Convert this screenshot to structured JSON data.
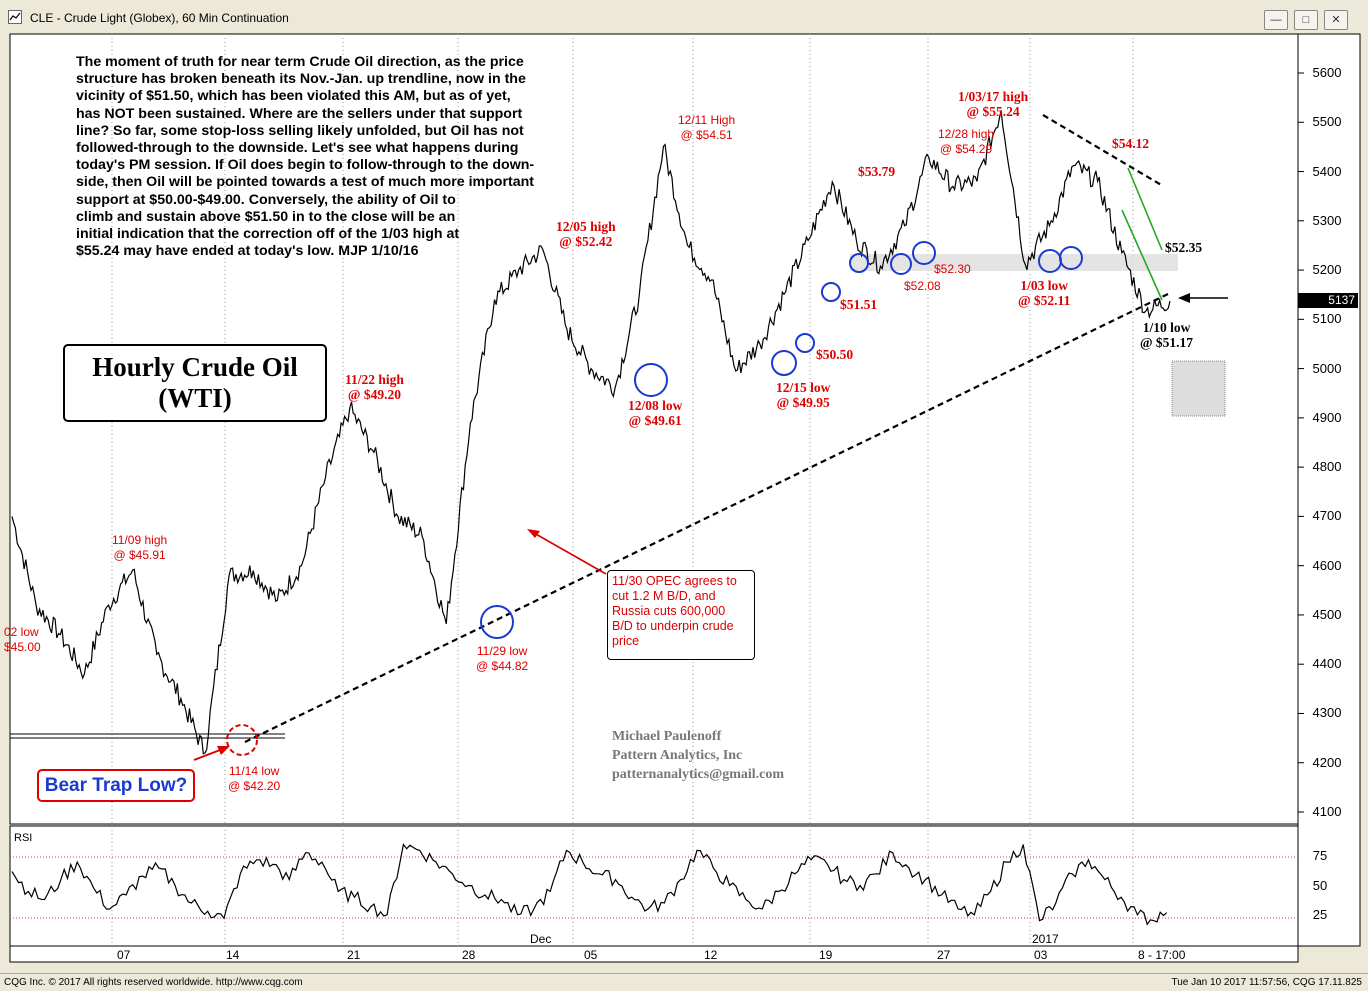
{
  "window": {
    "title": "CLE - Crude Light (Globex), 60 Min Continuation",
    "buttons": [
      "minimize",
      "maximize",
      "close"
    ]
  },
  "footer": {
    "left": "CQG Inc. © 2017 All rights reserved worldwide. http://www.cqg.com",
    "right": "Tue Jan 10 2017 11:57:56, CQG 17.11.825"
  },
  "commentary": "The moment of truth for near term Crude Oil direction, as the price\nstructure has broken beneath its Nov.-Jan. up trendline, now in the\nvicinity of $51.50, which has been violated this AM, but as of yet,\nhas NOT been sustained. Where are the sellers under that support\nline? So far, some stop-loss selling likely unfolded, but Oil has not\nfollowed-through to the downside. Let's see what happens during\ntoday's PM session. If Oil does begin to follow-through to the down-\nside, then Oil will be pointed towards a test of much more important\nsupport at $50.00-$49.00. Conversely, the ability of Oil to\nclimb and sustain above $51.50 in to the close will be an\ninitial indication that the correction off of the 1/03 high at\n$55.24 may have ended at today's low. MJP 1/10/16",
  "box_title": "Hourly Crude Oil\n(WTI)",
  "bear_trap": "Bear Trap Low?",
  "opec_note": "11/30 OPEC agrees to\ncut 1.2 M B/D, and\nRussia cuts 600,000\nB/D to underpin crude\nprice",
  "credit": "Michael Paulenoff\nPattern Analytics, Inc\npatternanalytics@gmail.com",
  "annotations": {
    "nov02_low": "02 low\n$45.00",
    "nov09_high": "11/09 high\n@ $45.91",
    "nov14_low": "11/14 low\n@ $42.20",
    "nov22_high": "11/22 high\n@ $49.20",
    "nov29_low": "11/29 low\n@ $44.82",
    "dec05_high": "12/05 high\n@ $52.42",
    "dec08_low": "12/08 low\n@ $49.61",
    "dec11_high": "12/11 High\n@ $54.51",
    "dec15_low": "12/15 low\n@ $49.95",
    "p5050": "$50.50",
    "p5151": "$51.51",
    "p5379": "$53.79",
    "p5208": "$52.08",
    "p5230": "$52.30",
    "dec28_high": "12/28 high\n@ $54.29",
    "jan03_high": "1/03/17 high\n@ $55.24",
    "jan03_low": "1/03 low\n@ $52.11",
    "p5412": "$54.12",
    "p5235": "$52.35",
    "jan10_low": "1/10 low\n@ $51.17"
  },
  "last_price": "5137",
  "rsi_label": "RSI",
  "colors": {
    "price": "#000000",
    "annotation": "#dd0000",
    "circle": "#1a3ad0",
    "trend": "#22aa22",
    "bg": "#ffffff"
  },
  "chart_data": {
    "type": "line",
    "title": "CLE - Crude Light (Globex), 60 Min Continuation",
    "ylabel": "",
    "ylim": [
      4100,
      5600
    ],
    "yticks": [
      "5600",
      "5500",
      "5400",
      "5300",
      "5200",
      "5100",
      "5000",
      "4900",
      "4800",
      "4700",
      "4600",
      "4500",
      "4400",
      "4300",
      "4200",
      "4100"
    ],
    "xticks": [
      "07",
      "14",
      "21",
      "28",
      "Dec",
      "05",
      "12",
      "19",
      "27",
      "2017",
      "03",
      "8 - 17:00"
    ],
    "series": [
      {
        "points": [
          [
            "11/02",
            4700
          ],
          [
            "11/03",
            4520
          ],
          [
            "11/04",
            4460
          ],
          [
            "11/07",
            4380
          ],
          [
            "11/08",
            4520
          ],
          [
            "11/09",
            4591
          ],
          [
            "11/10",
            4420
          ],
          [
            "11/11",
            4330
          ],
          [
            "11/14",
            4220
          ],
          [
            "11/15",
            4580
          ],
          [
            "11/16",
            4590
          ],
          [
            "11/17",
            4530
          ],
          [
            "11/18",
            4600
          ],
          [
            "11/21",
            4780
          ],
          [
            "11/22",
            4920
          ],
          [
            "11/23",
            4830
          ],
          [
            "11/25",
            4700
          ],
          [
            "11/28",
            4660
          ],
          [
            "11/29",
            4482
          ],
          [
            "11/30",
            4890
          ],
          [
            "12/01",
            5140
          ],
          [
            "12/02",
            5200
          ],
          [
            "12/05",
            5242
          ],
          [
            "12/06",
            5080
          ],
          [
            "12/07",
            5000
          ],
          [
            "12/08",
            4961
          ],
          [
            "12/09",
            5150
          ],
          [
            "12/12",
            5451
          ],
          [
            "12/13",
            5250
          ],
          [
            "12/14",
            5180
          ],
          [
            "12/15",
            4995
          ],
          [
            "12/16",
            5050
          ],
          [
            "12/19",
            5151
          ],
          [
            "12/20",
            5260
          ],
          [
            "12/21",
            5379
          ],
          [
            "12/22",
            5260
          ],
          [
            "12/23",
            5208
          ],
          [
            "12/27",
            5290
          ],
          [
            "12/28",
            5429
          ],
          [
            "12/29",
            5370
          ],
          [
            "12/30",
            5380
          ],
          [
            "01/03",
            5524
          ],
          [
            "01/03",
            5211
          ],
          [
            "01/04",
            5290
          ],
          [
            "01/05",
            5412
          ],
          [
            "01/06",
            5380
          ],
          [
            "01/09",
            5235
          ],
          [
            "01/10",
            5117
          ],
          [
            "01/10",
            5137
          ]
        ]
      }
    ],
    "rsi": {
      "ylim": [
        0,
        100
      ],
      "yticks": [
        "75",
        "50",
        "25"
      ],
      "values": [
        62,
        45,
        38,
        55,
        70,
        48,
        30,
        42,
        58,
        65,
        50,
        35,
        28,
        22,
        60,
        72,
        68,
        55,
        78,
        70,
        45,
        40,
        32,
        25,
        85,
        80,
        70,
        60,
        50,
        42,
        38,
        25,
        30,
        45,
        80,
        70,
        60,
        55,
        40,
        30,
        35,
        55,
        80,
        65,
        50,
        38,
        30,
        45,
        60,
        72,
        68,
        55,
        50,
        60,
        78,
        65,
        55,
        42,
        30,
        25,
        45,
        70,
        85,
        20,
        35,
        60,
        72,
        55,
        40,
        25,
        20,
        35
      ]
    },
    "trendlines": [
      {
        "name": "Nov-Jan up trendline",
        "from": [
          "11/14",
          4220
        ],
        "to": [
          "01/10",
          5150
        ]
      }
    ]
  }
}
